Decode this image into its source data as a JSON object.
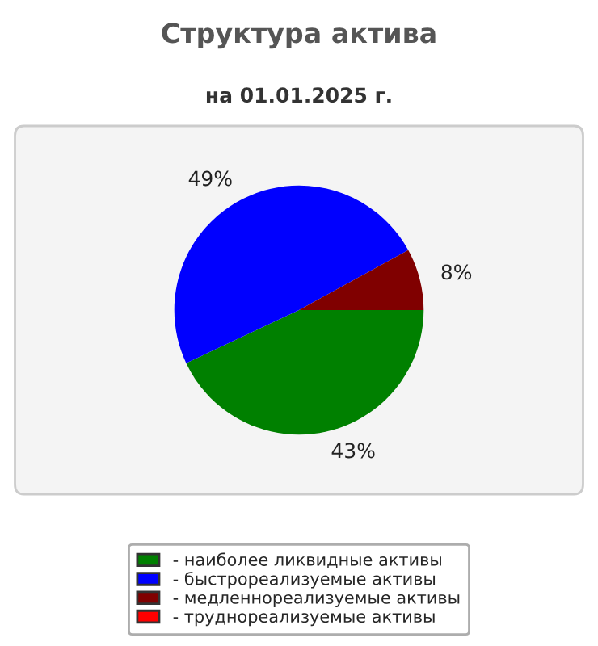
{
  "chart_data": {
    "type": "pie",
    "title": "Структура актива",
    "subtitle": "на 01.01.2025 г.",
    "categories": [
      "- наиболее ликвидные активы",
      "- быстрореализуемые активы",
      "- медленнореализуемые активы",
      "- труднореализуемые активы"
    ],
    "values": [
      43,
      49,
      8,
      0
    ],
    "value_labels": [
      "43%",
      "49%",
      "8%",
      null
    ],
    "colors": [
      "#008000",
      "#0000ff",
      "#800000",
      "#ff0000"
    ],
    "legend": "bottom"
  }
}
